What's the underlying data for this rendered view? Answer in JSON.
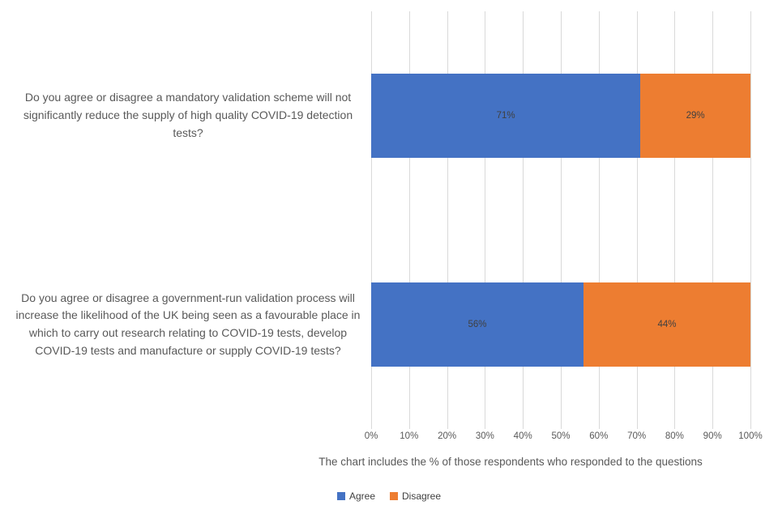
{
  "chart_data": {
    "type": "bar",
    "orientation": "horizontal",
    "stacked": true,
    "unit": "%",
    "categories": [
      "Do you agree or disagree a mandatory validation scheme will not significantly reduce the supply of high quality COVID-19 detection tests?",
      "Do you agree or disagree a government-run validation process will increase the likelihood of the UK being seen as a favourable place in which to carry out research relating to COVID-19 tests, develop COVID-19 tests and manufacture or supply COVID-19 tests?"
    ],
    "series": [
      {
        "name": "Agree",
        "color": "#4472C4",
        "values": [
          71,
          56
        ]
      },
      {
        "name": "Disagree",
        "color": "#ED7D31",
        "values": [
          29,
          44
        ]
      }
    ],
    "data_labels": [
      [
        "71%",
        "29%"
      ],
      [
        "56%",
        "44%"
      ]
    ],
    "x_ticks": [
      "0%",
      "10%",
      "20%",
      "30%",
      "40%",
      "50%",
      "60%",
      "70%",
      "80%",
      "90%",
      "100%"
    ],
    "xlim": [
      0,
      100
    ],
    "grid": true,
    "legend_position": "bottom",
    "caption": "The chart includes the % of those respondents who responded to the questions"
  },
  "colors": {
    "agree": "#4472C4",
    "disagree": "#ED7D31",
    "gridline": "#D9D9D9",
    "axis_text": "#595959",
    "data_label_text": "#404040",
    "background": "#FFFFFF"
  }
}
